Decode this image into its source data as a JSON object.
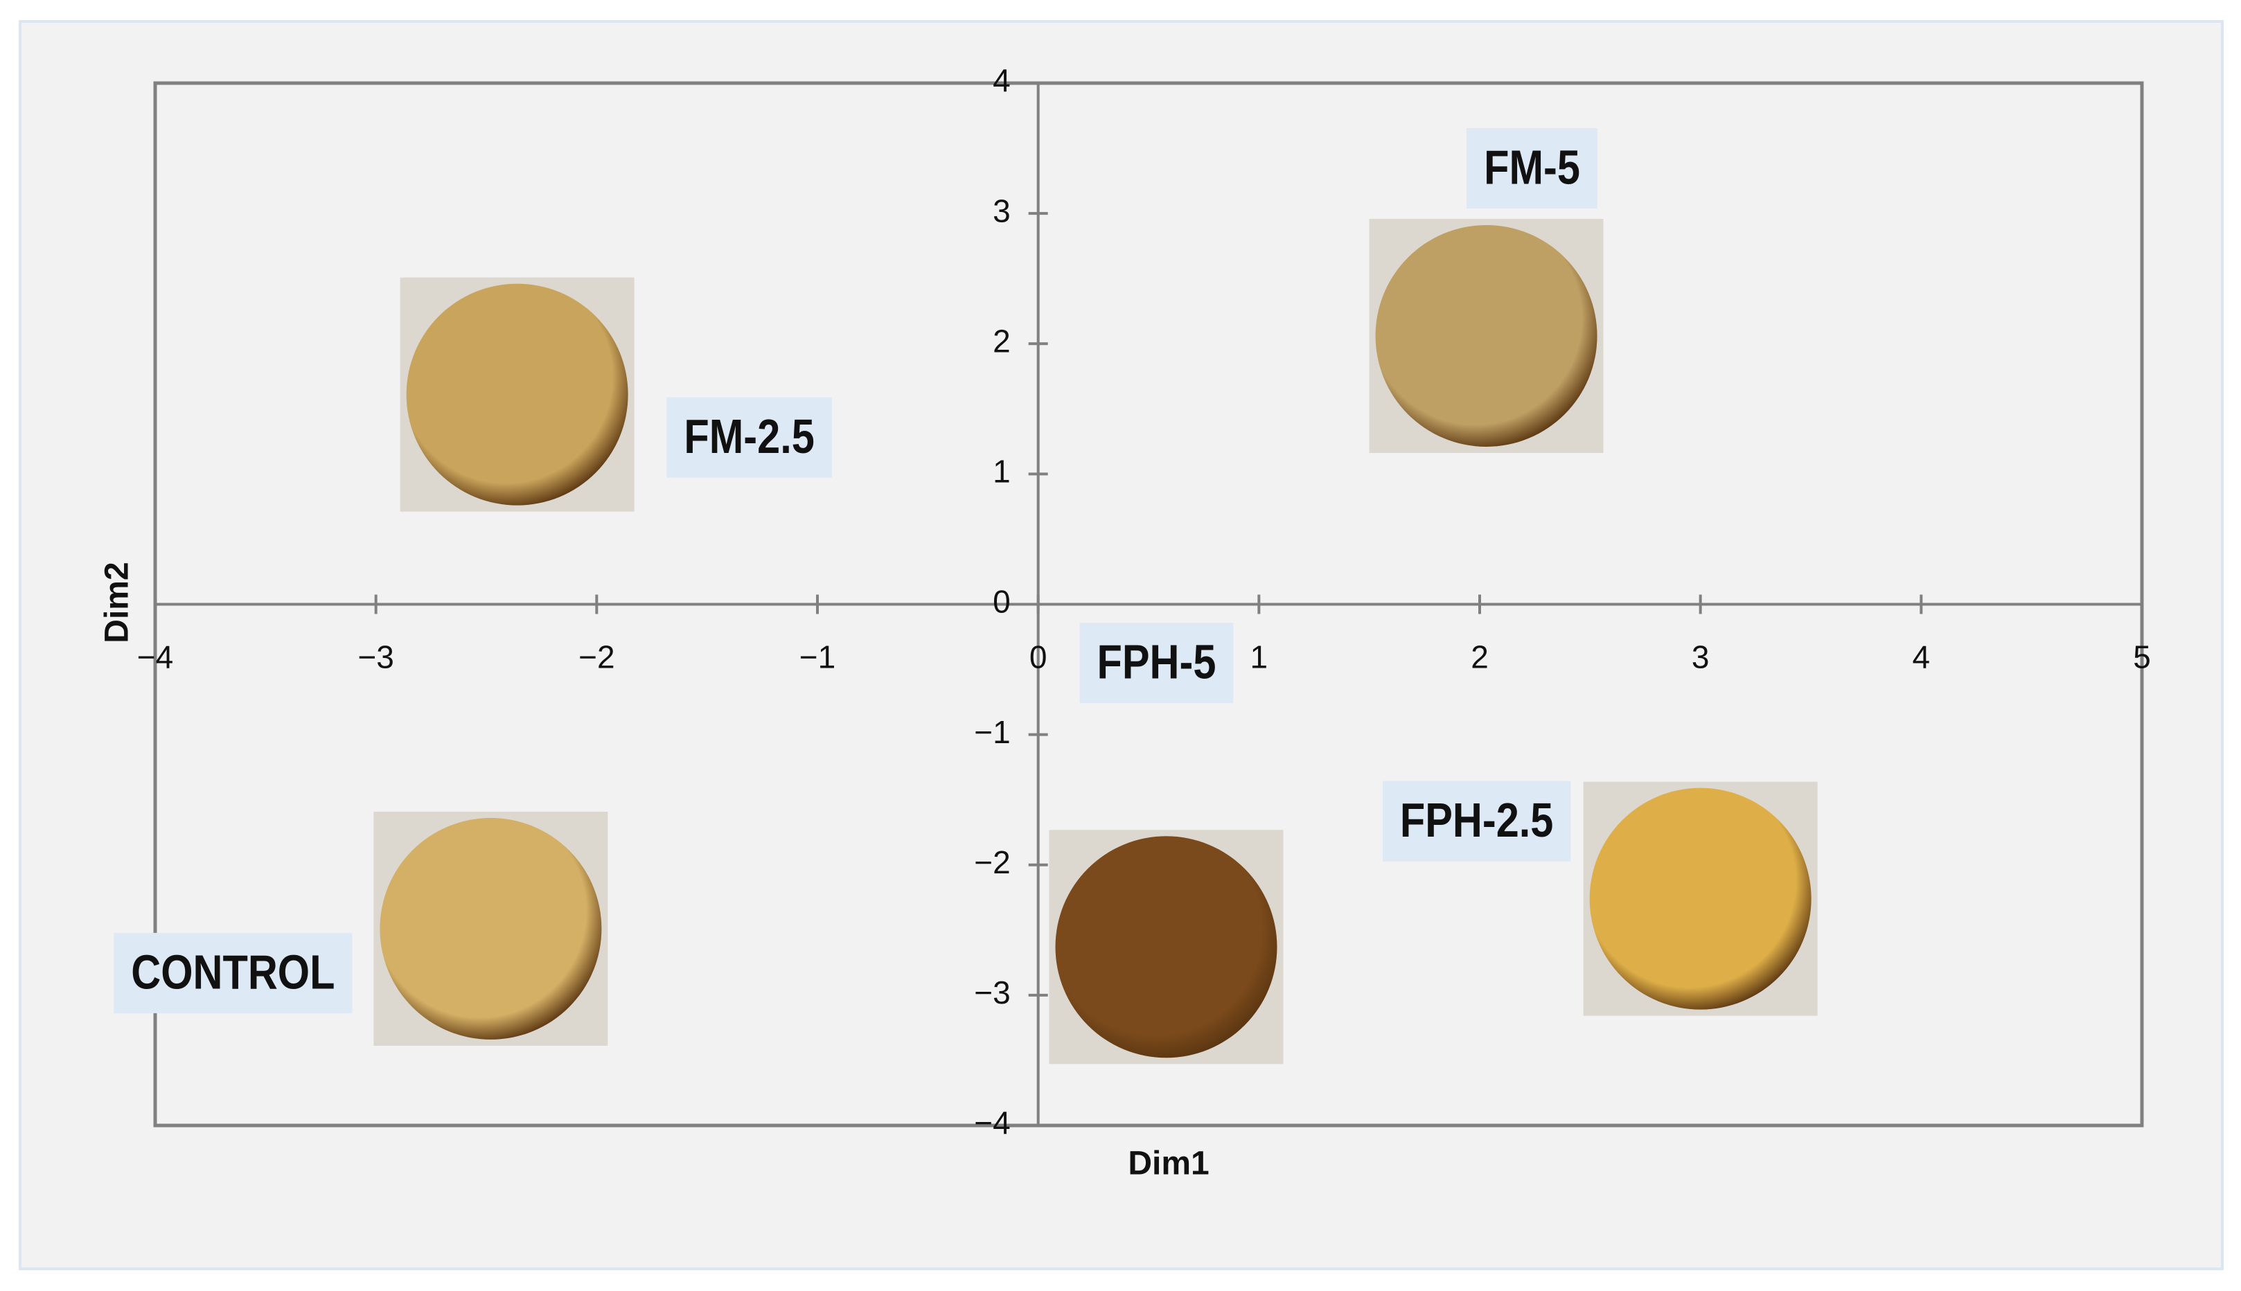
{
  "chart_data": {
    "type": "scatter",
    "xlabel": "Dim1",
    "ylabel": "Dim2",
    "point_labels": [
      "FM-2.5",
      "FM-5",
      "CONTROL",
      "FPH-5",
      "FPH-2.5"
    ],
    "x": [
      -2.36,
      2.03,
      -2.48,
      0.58,
      3.0
    ],
    "y": [
      1.61,
      2.06,
      -2.49,
      -2.63,
      -2.26
    ],
    "colors": [
      "#c9a45c",
      "#bfa064",
      "#d4b066",
      "#7a4a1c",
      "#deaf48"
    ],
    "xlim": [
      -4,
      5
    ],
    "ylim": [
      -4,
      4
    ],
    "xticks": [
      {
        "value": -4,
        "label": "−4"
      },
      {
        "value": -3,
        "label": "−3"
      },
      {
        "value": -2,
        "label": "−2"
      },
      {
        "value": -1,
        "label": "−1"
      },
      0,
      1,
      2,
      3,
      4,
      5
    ],
    "yticks": [
      {
        "value": -4,
        "label": "−4"
      },
      {
        "value": -3,
        "label": "−3"
      },
      {
        "value": -2,
        "label": "−2"
      },
      {
        "value": -1,
        "label": "−1"
      },
      0,
      1,
      2,
      3,
      4
    ]
  }
}
